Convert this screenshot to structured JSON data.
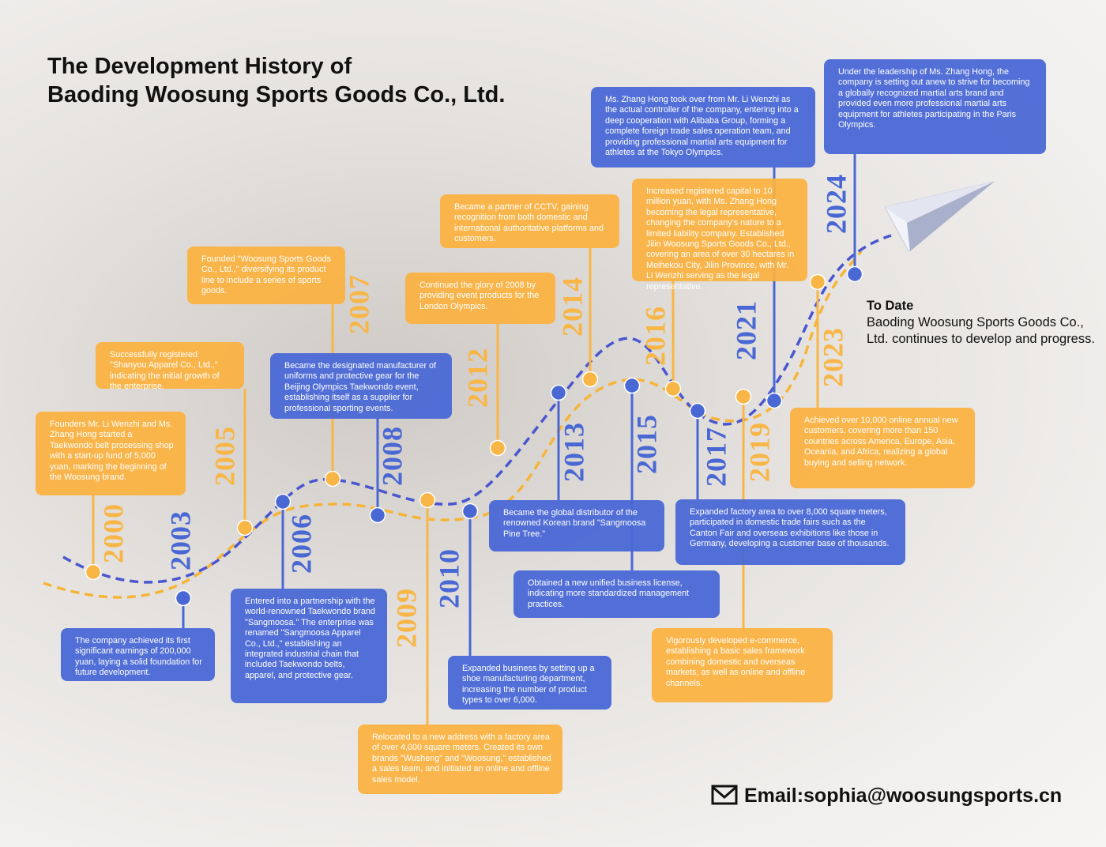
{
  "title": [
    "The Development History of",
    "Baoding Woosung Sports Goods Co., Ltd."
  ],
  "events": [
    {
      "year": "2000",
      "text": "Founders Mr. Li Wenzhi and Ms. Zhang Hong started a Taekwondo belt processing shop with a start-up fund of 5,000 yuan, marking the beginning of the Woosung brand."
    },
    {
      "year": "2003",
      "text": "The company achieved its first significant earnings of 200,000 yuan, laying a solid foundation for future development."
    },
    {
      "year": "2005",
      "text": "Successfully registered \"Shanyou Apparel Co., Ltd.,\" indicating the initial growth of the enterprise."
    },
    {
      "year": "2006",
      "text": "Entered into a partnership with the world-renowned Taekwondo brand \"Sangmoosa.\" The enterprise was renamed \"Sangmoosa Apparel Co., Ltd.,\" establishing an integrated industrial chain that included Taekwondo belts, apparel, and protective gear."
    },
    {
      "year": "2007",
      "text": "Founded \"Woosung Sports Goods Co., Ltd.,\" diversifying its product line to include a series of sports goods."
    },
    {
      "year": "2008",
      "text": "Became the designated manufacturer of uniforms and protective gear for the Beijing Olympics Taekwondo event, establishing itself as a supplier for professional sporting events."
    },
    {
      "year": "2009",
      "text": "Relocated to a new address with a factory area of over 4,000 square meters. Created its own brands \"Wusheng\" and \"Woosung,\" established a sales team, and initiated an online and offline sales model."
    },
    {
      "year": "2010",
      "text": "Expanded business by setting up a shoe manufacturing department, increasing the number of product types to over 6,000."
    },
    {
      "year": "2012",
      "text": "Continued the glory of 2008 by providing event products for the London Olympics."
    },
    {
      "year": "2013",
      "text": "Became the global distributor of the renowned Korean brand \"Sangmoosa Pine Tree.\""
    },
    {
      "year": "2014",
      "text": "Became a partner of CCTV, gaining recognition from both domestic and international authoritative platforms and customers."
    },
    {
      "year": "2015",
      "text": "Obtained a new unified business license, indicating more standardized management practices."
    },
    {
      "year": "2016",
      "text": "Increased registered capital to 10 million yuan, with Ms. Zhang Hong becoming the legal representative, changing the company's nature to a limited liability company. Established Jilin Woosung Sports Goods Co., Ltd., covering an area of over 30 hectares in Meihekou City, Jilin Province, with Mr. Li Wenzhi serving as the legal representative."
    },
    {
      "year": "2017",
      "text": "Expanded factory area to over 8,000 square meters, participated in domestic trade fairs such as the Canton Fair and overseas exhibitions like those in Germany, developing a customer base of thousands."
    },
    {
      "year": "2019",
      "text": "Vigorously developed e-commerce, establishing a basic sales framework combining domestic and overseas markets, as well as online and offline channels."
    },
    {
      "year": "2021",
      "text": "Ms. Zhang Hong took over from Mr. Li Wenzhi as the actual controller of the company, entering into a deep cooperation with Alibaba Group, forming a complete foreign trade sales operation team, and providing professional martial arts equipment for athletes at the Tokyo Olympics."
    },
    {
      "year": "2023",
      "text": "Achieved over 10,000 online annual new customers, covering more than 150 countries across America, Europe, Asia, Oceania, and Africa, realizing a global buying and selling network."
    },
    {
      "year": "2024",
      "text": "Under the leadership of Ms. Zhang Hong, the company is setting out anew to strive for becoming a globally recognized martial arts brand and provided even more professional martial arts equipment for athletes participating in the Paris Olympics."
    }
  ],
  "to_date": {
    "heading": "To Date",
    "text": "Baoding Woosung Sports Goods Co., Ltd. continues to develop and progress."
  },
  "email": "Email:sophia@woosungsports.cn"
}
